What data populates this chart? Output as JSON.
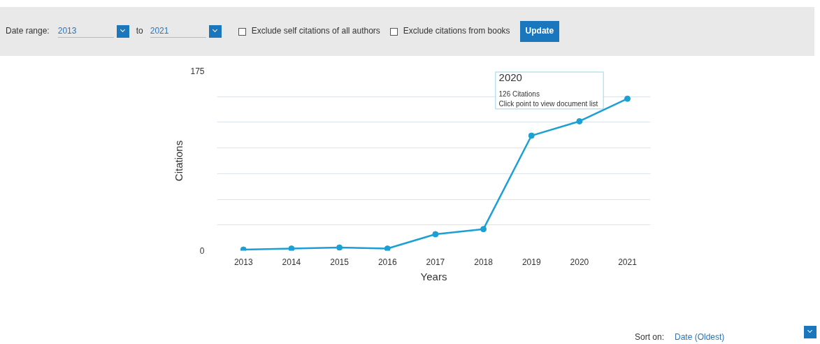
{
  "chart_data": {
    "type": "line",
    "xlabel": "Years",
    "ylabel": "Citations",
    "categories": [
      "2013",
      "2014",
      "2015",
      "2016",
      "2017",
      "2018",
      "2019",
      "2020",
      "2021"
    ],
    "series": [
      {
        "color": "#1ba0d5",
        "values": [
          1,
          2,
          3,
          2,
          16,
          21,
          112,
          126,
          148
        ]
      }
    ],
    "ylim": [
      0,
      175
    ],
    "yticks": [
      0,
      {
        "value": 25,
        "label": null
      },
      {
        "value": 50,
        "label": null
      },
      {
        "value": 75,
        "label": null
      },
      {
        "value": 100,
        "label": null
      },
      {
        "value": 125,
        "label": null
      },
      {
        "value": 150,
        "label": null
      },
      175
    ],
    "grid": "y",
    "marker": "circle",
    "line_style": "solid",
    "annotations": [
      {
        "text": "2020\n126 Citations\nClick point to view document list",
        "x": "2020",
        "y": 126
      },
      "Date range:",
      "2013",
      "to",
      "2021",
      "Exclude self citations of all authors",
      "Exclude citations from books",
      "Update",
      "Sort on:",
      "Date (Oldest)"
    ]
  }
}
